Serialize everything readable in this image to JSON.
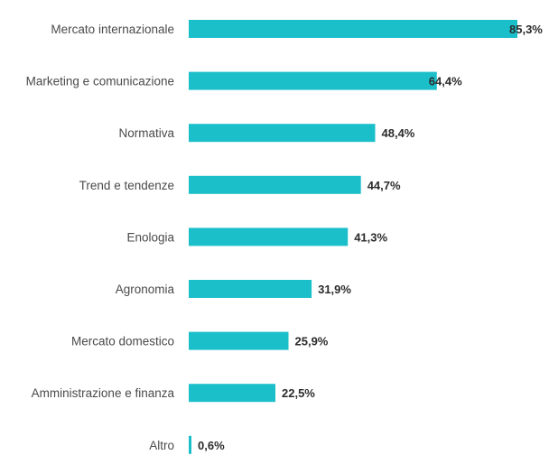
{
  "chart_data": {
    "type": "bar",
    "orientation": "horizontal",
    "categories": [
      "Mercato internazionale",
      "Marketing e comunicazione",
      "Normativa",
      "Trend e tendenze",
      "Enologia",
      "Agronomia",
      "Mercato domestico",
      "Amministrazione e finanza",
      "Altro"
    ],
    "values": [
      85.3,
      64.4,
      48.4,
      44.7,
      41.3,
      31.9,
      25.9,
      22.5,
      0.6
    ],
    "value_labels": [
      "85,3%",
      "64,4%",
      "48,4%",
      "44,7%",
      "41,3%",
      "31,9%",
      "25,9%",
      "22,5%",
      "0,6%"
    ],
    "unit": "%",
    "title": "",
    "xlabel": "",
    "ylabel": "",
    "xlim": [
      0,
      85.3
    ],
    "grid": false,
    "legend": "none",
    "bar_color": "#1bbfca"
  }
}
